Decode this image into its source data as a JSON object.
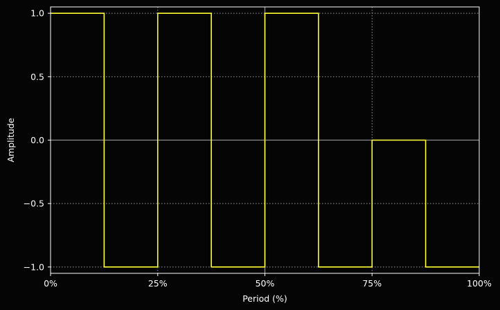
{
  "chart_data": {
    "type": "line",
    "title": "",
    "xlabel": "Period (%)",
    "ylabel": "Amplitude",
    "xlim": [
      0,
      100
    ],
    "ylim": [
      -1.05,
      1.05
    ],
    "grid": true,
    "grid_style": "dotted",
    "x_ticks": [
      {
        "value": 0,
        "label": "0%"
      },
      {
        "value": 25,
        "label": "25%"
      },
      {
        "value": 50,
        "label": "50%"
      },
      {
        "value": 75,
        "label": "75%"
      },
      {
        "value": 100,
        "label": "100%"
      }
    ],
    "y_ticks": [
      {
        "value": 1.0,
        "label": "1.0"
      },
      {
        "value": 0.5,
        "label": "0.5"
      },
      {
        "value": 0.0,
        "label": "0.0"
      },
      {
        "value": -0.5,
        "label": "−0.5"
      },
      {
        "value": -1.0,
        "label": "−1.0"
      }
    ],
    "reference_lines": {
      "x": [
        50
      ],
      "y": [
        0
      ]
    },
    "series": [
      {
        "color": "#ffff33",
        "step": "post",
        "x": [
          0,
          12.5,
          25,
          37.5,
          50,
          62.5,
          75,
          87.5,
          100
        ],
        "y": [
          1,
          -1,
          1,
          -1,
          1,
          -1,
          0,
          -1,
          -1
        ]
      }
    ],
    "colors": {
      "background": "#050505",
      "axes": "#ffffff",
      "grid": "#9a9a9a",
      "reference": "#8c8c8c"
    }
  }
}
